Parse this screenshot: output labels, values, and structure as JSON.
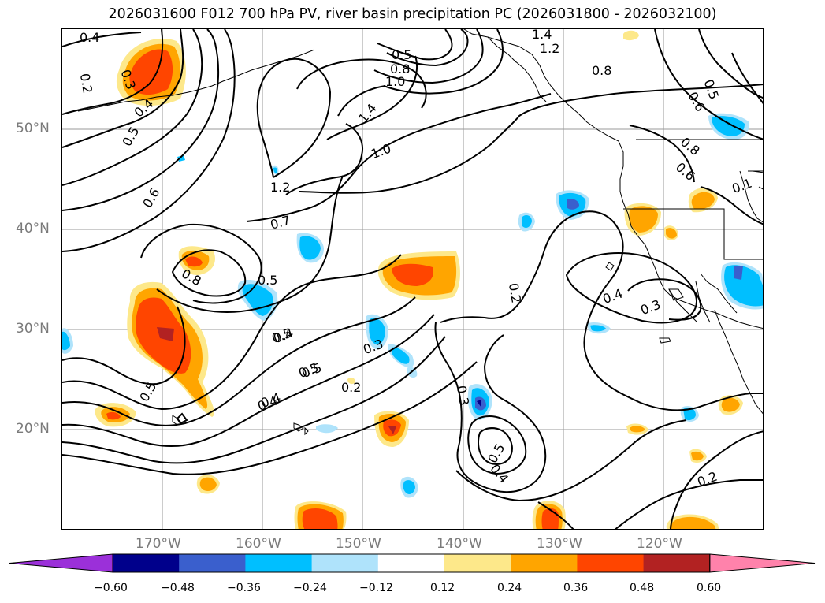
{
  "title": "2026031600 F012 700 hPa PV, river basin precipitation PC (2026031800 - 2026032100)",
  "latitude_labels": [
    "50°N",
    "40°N",
    "30°N",
    "20°N"
  ],
  "longitude_labels": [
    "170°W",
    "160°W",
    "150°W",
    "140°W",
    "130°W",
    "120°W"
  ],
  "colorbar": {
    "colors": [
      "#9b30d9",
      "#00008b",
      "#3a5fcd",
      "#00bfff",
      "#afe3fb",
      "#ffffff",
      "#fde88a",
      "#ffa500",
      "#ff4500",
      "#b22222",
      "#ff82ab"
    ],
    "tick_labels": [
      "−0.60",
      "−0.48",
      "−0.36",
      "−0.24",
      "−0.12",
      "0.12",
      "0.24",
      "0.36",
      "0.48",
      "0.60"
    ]
  },
  "contour_labels": [
    "0.4",
    "0.2",
    "0.3",
    "0.4",
    "0.5",
    "0.6",
    "0.8",
    "0.5",
    "0.4",
    "0.5",
    "0.5",
    "0.5",
    "0.8",
    "1.0",
    "1.4",
    "1.2",
    "1.4",
    "1.0",
    "1.2",
    "0.7",
    "0.5",
    "0.4",
    "0.5",
    "0.4",
    "0.2",
    "0.3",
    "0.8",
    "0.6",
    "0.5",
    "0.8",
    "0.6",
    "0.1",
    "0.2",
    "0.4",
    "0.3",
    "0.3",
    "0.5",
    "0.4",
    "0.2"
  ],
  "colors": {
    "contour": "#000000",
    "grid": "#9a9a9a",
    "axis_label": "#7a7a7a"
  }
}
